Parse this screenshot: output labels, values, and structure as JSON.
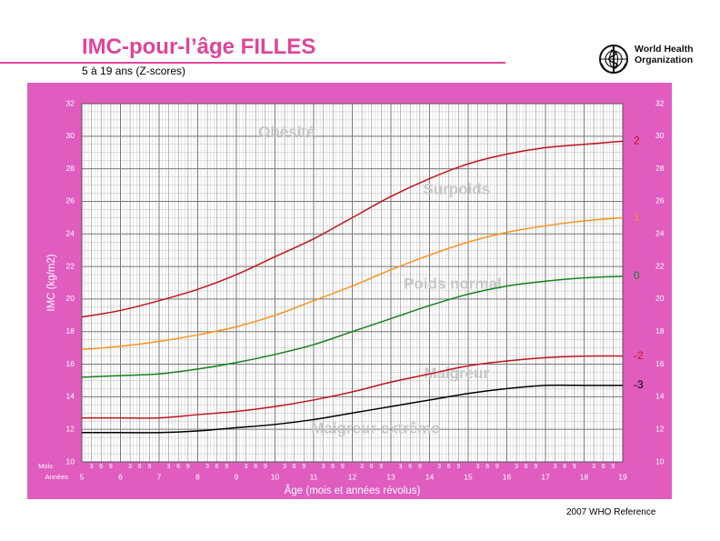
{
  "header": {
    "title": "IMC-pour-l’âge FILLES",
    "subtitle": "5 à 19 ans (Z-scores)"
  },
  "logo": {
    "line1": "World Health",
    "line2": "Organization",
    "icon": "who-emblem-icon"
  },
  "footer": {
    "reference": "2007 WHO Reference"
  },
  "colors": {
    "frame": "#e05cbf",
    "plot_bg": "#ffffff",
    "grid_major": "#777777",
    "grid_minor": "#bfbfbf",
    "z2": "#c0141e",
    "z1": "#f7931e",
    "z0": "#15821e",
    "zm2": "#c0141e",
    "zm3": "#000000",
    "zone_text": "#c8c8c8"
  },
  "chart_data": {
    "type": "line",
    "xlabel": "Âge (mois et années révolus)",
    "ylabel": "IMC (kg/m2)",
    "xlim": [
      5,
      19
    ],
    "ylim": [
      10,
      32
    ],
    "x_row_labels": {
      "months": "Mois",
      "years": "Années"
    },
    "x_ticks": [
      5,
      6,
      7,
      8,
      9,
      10,
      11,
      12,
      13,
      14,
      15,
      16,
      17,
      18,
      19
    ],
    "x_month_ticks": [
      "3",
      "6",
      "9"
    ],
    "y_ticks": [
      10,
      12,
      14,
      16,
      18,
      20,
      22,
      24,
      26,
      28,
      30,
      32
    ],
    "grid": true,
    "zone_labels": [
      {
        "text": "Obésité",
        "x": 10.3,
        "y": 30.2
      },
      {
        "text": "Surpoids",
        "x": 14.7,
        "y": 26.7
      },
      {
        "text": "Poids normal",
        "x": 14.6,
        "y": 20.9
      },
      {
        "text": "Maigreur",
        "x": 14.7,
        "y": 15.4
      },
      {
        "text": "Maigreur extrême",
        "x": 12.6,
        "y": 12.0
      }
    ],
    "series": [
      {
        "name": "2",
        "color_key": "z2",
        "x": [
          5,
          6,
          7,
          8,
          9,
          10,
          11,
          12,
          13,
          14,
          15,
          16,
          17,
          18,
          19
        ],
        "values": [
          18.9,
          19.3,
          19.9,
          20.6,
          21.5,
          22.6,
          23.7,
          25.0,
          26.3,
          27.4,
          28.3,
          28.9,
          29.3,
          29.5,
          29.7
        ]
      },
      {
        "name": "1",
        "color_key": "z1",
        "x": [
          5,
          6,
          7,
          8,
          9,
          10,
          11,
          12,
          13,
          14,
          15,
          16,
          17,
          18,
          19
        ],
        "values": [
          16.9,
          17.1,
          17.4,
          17.8,
          18.3,
          19.0,
          19.9,
          20.8,
          21.8,
          22.7,
          23.5,
          24.1,
          24.5,
          24.8,
          25.0
        ]
      },
      {
        "name": "0",
        "color_key": "z0",
        "x": [
          5,
          6,
          7,
          8,
          9,
          10,
          11,
          12,
          13,
          14,
          15,
          16,
          17,
          18,
          19
        ],
        "values": [
          15.2,
          15.3,
          15.4,
          15.7,
          16.1,
          16.6,
          17.2,
          18.0,
          18.8,
          19.6,
          20.3,
          20.8,
          21.1,
          21.3,
          21.4
        ]
      },
      {
        "name": "-2",
        "color_key": "zm2",
        "x": [
          5,
          6,
          7,
          8,
          9,
          10,
          11,
          12,
          13,
          14,
          15,
          16,
          17,
          18,
          19
        ],
        "values": [
          12.7,
          12.7,
          12.7,
          12.9,
          13.1,
          13.4,
          13.8,
          14.3,
          14.9,
          15.4,
          15.9,
          16.2,
          16.4,
          16.5,
          16.5
        ]
      },
      {
        "name": "-3",
        "color_key": "zm3",
        "x": [
          5,
          6,
          7,
          8,
          9,
          10,
          11,
          12,
          13,
          14,
          15,
          16,
          17,
          18,
          19
        ],
        "values": [
          11.8,
          11.8,
          11.8,
          11.9,
          12.1,
          12.3,
          12.6,
          13.0,
          13.4,
          13.8,
          14.2,
          14.5,
          14.7,
          14.7,
          14.7
        ]
      }
    ]
  }
}
